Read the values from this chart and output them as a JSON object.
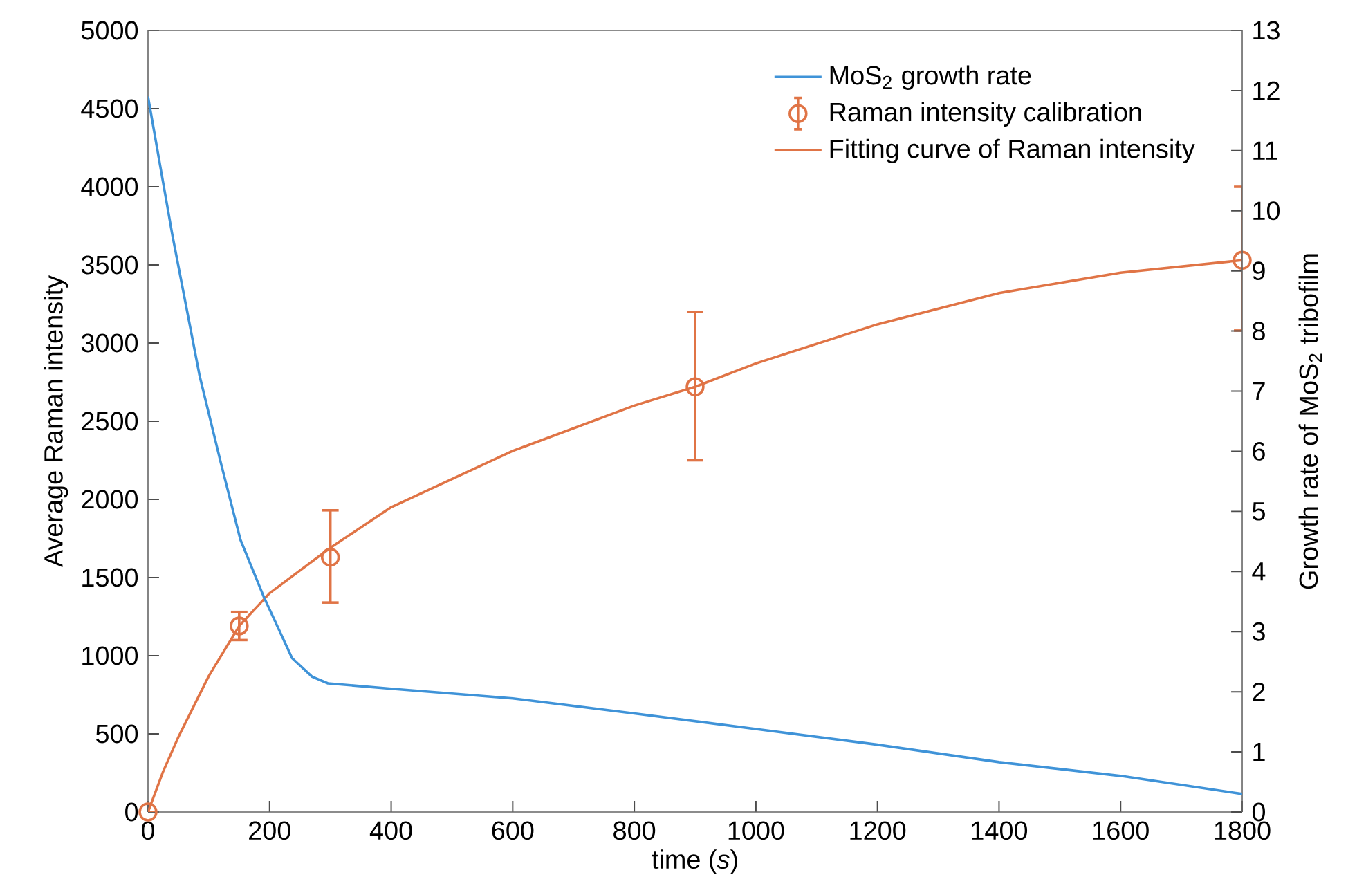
{
  "chart_data": {
    "type": "line",
    "xlabel": "time (*s*)",
    "ylabel": "Average Raman intensity",
    "y2label": "Growth rate of MoS$_{2}$ tribofilm",
    "xlim": [
      0,
      1800
    ],
    "xticks": [
      0,
      200,
      400,
      600,
      800,
      1000,
      1200,
      1400,
      1600,
      1800
    ],
    "ylim": [
      0,
      5000
    ],
    "yticks": [
      0,
      500,
      1000,
      1500,
      2000,
      2500,
      3000,
      3500,
      4000,
      4500,
      5000
    ],
    "y2lim": [
      0,
      13
    ],
    "y2ticks": [
      0,
      1,
      2,
      3,
      4,
      5,
      6,
      7,
      8,
      9,
      10,
      11,
      12,
      13
    ],
    "legend": "top right",
    "grid": false,
    "series": [
      {
        "name": "MoS$_{2}$ growth rate",
        "axis": "y2",
        "color": "#3f93d8",
        "x": [
          0,
          40,
          85,
          120,
          152,
          190,
          237,
          270,
          296,
          400,
          600,
          800,
          1000,
          1200,
          1400,
          1600,
          1800
        ],
        "values": [
          11.9,
          9.6,
          7.25,
          5.8,
          4.53,
          3.59,
          2.56,
          2.25,
          2.14,
          2.05,
          1.89,
          1.64,
          1.38,
          1.12,
          0.83,
          0.6,
          0.3
        ]
      },
      {
        "name": "Raman intensity calibration",
        "type": "scatter",
        "marker": "circle",
        "color": "#e07446",
        "x": [
          0,
          150,
          300,
          900,
          1800
        ],
        "values": [
          0,
          1190,
          1630,
          2720,
          3530
        ],
        "errors": [
          null,
          [
            1100,
            1280
          ],
          [
            1340,
            1930
          ],
          [
            2250,
            3200
          ],
          [
            3080,
            4000
          ]
        ]
      },
      {
        "name": "Fitting curve of Raman intensity",
        "color": "#e07446",
        "x": [
          0,
          25,
          50,
          100,
          150,
          200,
          300,
          400,
          500,
          600,
          800,
          900,
          1000,
          1200,
          1400,
          1600,
          1800
        ],
        "values": [
          0,
          260,
          480,
          870,
          1190,
          1400,
          1690,
          1950,
          2130,
          2310,
          2600,
          2720,
          2870,
          3120,
          3320,
          3450,
          3530
        ]
      }
    ]
  }
}
